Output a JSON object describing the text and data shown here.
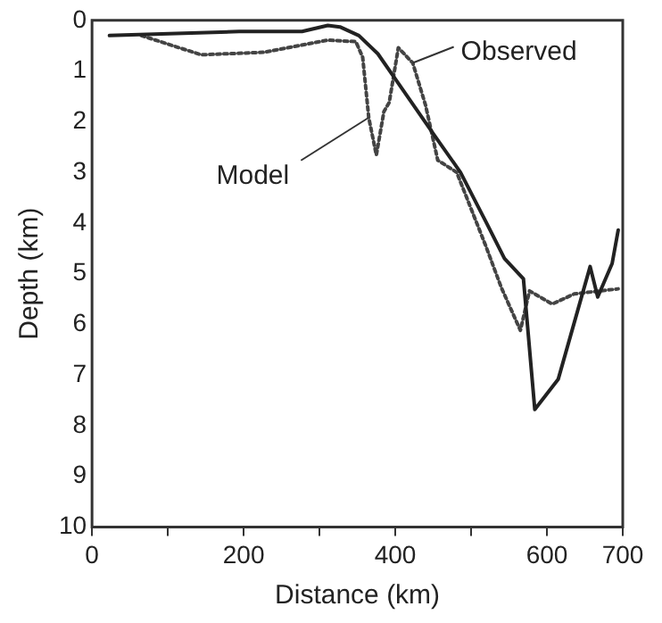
{
  "chart_data": {
    "type": "line",
    "xlabel": "Distance (km)",
    "ylabel": "Depth (km)",
    "xlim": [
      0,
      700
    ],
    "xticks": [
      0,
      {
        "value": 100,
        "label": null
      },
      200,
      {
        "value": 300,
        "label": null
      },
      400,
      {
        "value": 500,
        "label": null
      },
      600,
      700
    ],
    "ylim": [
      10,
      0
    ],
    "yticks": [
      0,
      1,
      2,
      3,
      4,
      5,
      6,
      7,
      8,
      9,
      10
    ],
    "grid": false,
    "legend": false,
    "marker": "none",
    "series": [
      {
        "color": "#222222",
        "line_style": "solid",
        "x": [
          23,
          194,
          277,
          311,
          327,
          352,
          377,
          402,
          452,
          486,
          519,
          544,
          569,
          584,
          615,
          657,
          667,
          686,
          694
        ],
        "values": [
          0.3,
          0.22,
          0.22,
          0.1,
          0.13,
          0.3,
          0.66,
          1.2,
          2.28,
          3.0,
          3.96,
          4.7,
          5.1,
          7.68,
          7.08,
          4.86,
          5.46,
          4.8,
          4.14
        ]
      },
      {
        "color": "#444444",
        "line_style": "dotted",
        "x": [
          65,
          144,
          227,
          311,
          348,
          357,
          365,
          375,
          385,
          392,
          404,
          423,
          440,
          456,
          481,
          519,
          540,
          565,
          577,
          607,
          636,
          694
        ],
        "values": [
          0.3,
          0.68,
          0.63,
          0.39,
          0.42,
          0.73,
          1.92,
          2.66,
          1.8,
          1.62,
          0.54,
          0.84,
          1.68,
          2.76,
          3.0,
          4.44,
          5.28,
          6.12,
          5.34,
          5.6,
          5.4,
          5.3
        ]
      }
    ],
    "annotations": [
      {
        "text": "Observed",
        "x": 423,
        "y": 0.84
      },
      {
        "text": "Model",
        "x": 365,
        "y": 1.92
      }
    ]
  }
}
